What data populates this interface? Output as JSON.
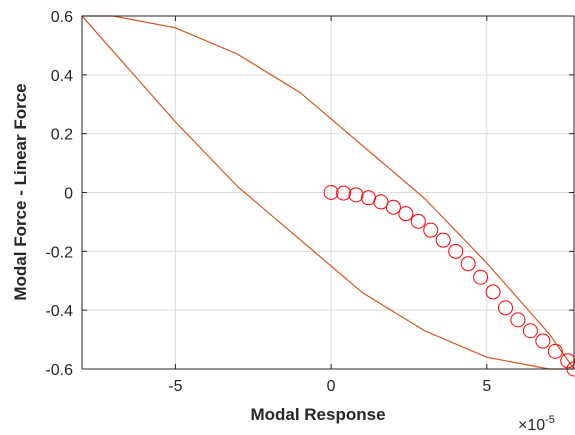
{
  "chart_data": {
    "type": "scatter",
    "xlabel": "Modal Response",
    "ylabel": "Modal Force - Linear Force",
    "xlim": [
      -8e-05,
      7.8e-05
    ],
    "ylim": [
      -0.6,
      0.6
    ],
    "x_exponent_base": "×10",
    "x_exponent_power": "-5",
    "xticks": [
      -5e-05,
      0,
      5e-05
    ],
    "xtick_labels": [
      "-5",
      "0",
      "5"
    ],
    "yticks": [
      -0.6,
      -0.4,
      -0.2,
      0,
      0.2,
      0.4,
      0.6
    ],
    "ytick_labels": [
      "-0.6",
      "-0.4",
      "-0.2",
      "0",
      "0.2",
      "0.4",
      "0.6"
    ],
    "grid": true,
    "series": [
      {
        "kind": "line",
        "color": "#d95319",
        "x": [
          -8e-05,
          -7e-05,
          -5e-05,
          -3e-05,
          -1e-05,
          1e-05,
          3e-05,
          5e-05,
          6e-05,
          7e-05,
          7.8e-05,
          7e-05,
          5e-05,
          3e-05,
          1e-05,
          -1e-05,
          -3e-05,
          -5e-05,
          -6e-05,
          -7e-05,
          -8e-05
        ],
        "y": [
          0.6,
          0.6,
          0.56,
          0.47,
          0.34,
          0.16,
          -0.02,
          -0.24,
          -0.36,
          -0.48,
          -0.6,
          -0.6,
          -0.56,
          -0.47,
          -0.34,
          -0.16,
          0.02,
          0.24,
          0.36,
          0.48,
          0.6
        ]
      },
      {
        "kind": "markers",
        "marker": "circle",
        "color": "#ff0000",
        "x": [
          0,
          4e-06,
          8e-06,
          1.2e-05,
          1.6e-05,
          2e-05,
          2.4e-05,
          2.8e-05,
          3.2e-05,
          3.6e-05,
          4e-05,
          4.4e-05,
          4.8e-05,
          5.2e-05,
          5.6e-05,
          6e-05,
          6.4e-05,
          6.8e-05,
          7.2e-05,
          7.6e-05,
          7.8e-05
        ],
        "y": [
          0,
          -0.002,
          -0.008,
          -0.018,
          -0.032,
          -0.05,
          -0.072,
          -0.098,
          -0.128,
          -0.162,
          -0.2,
          -0.242,
          -0.288,
          -0.338,
          -0.392,
          -0.433,
          -0.47,
          -0.505,
          -0.54,
          -0.572,
          -0.6
        ]
      }
    ]
  }
}
